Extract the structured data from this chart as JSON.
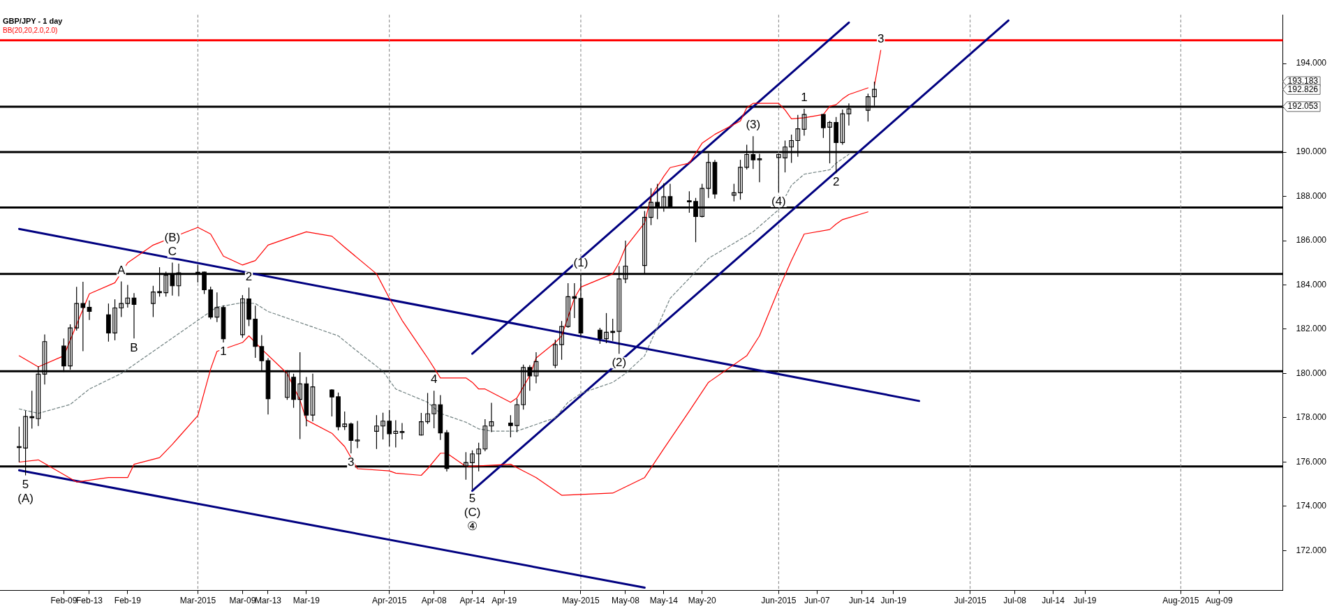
{
  "chart_data": {
    "type": "candlestick",
    "title": "GBP/JPY - 1 day",
    "color": "#000000",
    "marker": "none",
    "grid": false,
    "xlim": [
      "2015-01-30",
      "2015-08-19"
    ],
    "ylim": [
      170.2,
      196.2
    ],
    "yticks": [
      {
        "value": 172,
        "label": "172.000"
      },
      {
        "value": 174,
        "label": "174.000"
      },
      {
        "value": 176,
        "label": "176.000"
      },
      {
        "value": 178,
        "label": "178.000"
      },
      {
        "value": 180,
        "label": "180.000"
      },
      {
        "value": 182,
        "label": "182.000"
      },
      {
        "value": 184,
        "label": "184.000"
      },
      {
        "value": 186,
        "label": "186.000"
      },
      {
        "value": 188,
        "label": "188.000"
      },
      {
        "value": 190,
        "label": "190.000"
      },
      {
        "value": 192,
        "label": null
      },
      {
        "value": 194,
        "label": "194.000"
      }
    ],
    "xticks": [
      {
        "value": "2015-02-09",
        "label": "Feb-09"
      },
      {
        "value": "2015-02-13",
        "label": "Feb-13"
      },
      {
        "value": "2015-02-19",
        "label": "Feb-19"
      },
      {
        "value": "2015-03-02",
        "label": "Mar-2015"
      },
      {
        "value": "2015-03-09",
        "label": "Mar-09"
      },
      {
        "value": "2015-03-13",
        "label": "Mar-13"
      },
      {
        "value": "2015-03-19",
        "label": "Mar-19"
      },
      {
        "value": "2015-04-01",
        "label": "Apr-2015"
      },
      {
        "value": "2015-04-08",
        "label": "Apr-08"
      },
      {
        "value": "2015-04-14",
        "label": "Apr-14"
      },
      {
        "value": "2015-04-19",
        "label": "Apr-19"
      },
      {
        "value": "2015-05-01",
        "label": "May-2015"
      },
      {
        "value": "2015-05-08",
        "label": "May-08"
      },
      {
        "value": "2015-05-14",
        "label": "May-14"
      },
      {
        "value": "2015-05-20",
        "label": "May-20"
      },
      {
        "value": "2015-06-01",
        "label": "Jun-2015"
      },
      {
        "value": "2015-06-07",
        "label": "Jun-07"
      },
      {
        "value": "2015-06-14",
        "label": "Jun-14"
      },
      {
        "value": "2015-06-19",
        "label": "Jun-19"
      },
      {
        "value": "2015-07-01",
        "label": "Jul-2015"
      },
      {
        "value": "2015-07-08",
        "label": "Jul-08"
      },
      {
        "value": "2015-07-14",
        "label": "Jul-14"
      },
      {
        "value": "2015-07-19",
        "label": "Jul-19"
      },
      {
        "value": "2015-08-03",
        "label": "Aug-2015"
      },
      {
        "value": "2015-08-09",
        "label": "Aug-09"
      }
    ],
    "x": [
      "2015-02-02",
      "2015-02-03",
      "2015-02-04",
      "2015-02-05",
      "2015-02-06",
      "2015-02-09",
      "2015-02-10",
      "2015-02-11",
      "2015-02-12",
      "2015-02-13",
      "2015-02-16",
      "2015-02-17",
      "2015-02-18",
      "2015-02-19",
      "2015-02-20",
      "2015-02-23",
      "2015-02-24",
      "2015-02-25",
      "2015-02-26",
      "2015-02-27",
      "2015-03-02",
      "2015-03-03",
      "2015-03-04",
      "2015-03-05",
      "2015-03-06",
      "2015-03-09",
      "2015-03-10",
      "2015-03-11",
      "2015-03-12",
      "2015-03-13",
      "2015-03-16",
      "2015-03-17",
      "2015-03-18",
      "2015-03-19",
      "2015-03-20",
      "2015-03-23",
      "2015-03-24",
      "2015-03-25",
      "2015-03-26",
      "2015-03-27",
      "2015-03-30",
      "2015-03-31",
      "2015-04-01",
      "2015-04-02",
      "2015-04-03",
      "2015-04-06",
      "2015-04-07",
      "2015-04-08",
      "2015-04-09",
      "2015-04-10",
      "2015-04-13",
      "2015-04-14",
      "2015-04-15",
      "2015-04-16",
      "2015-04-17",
      "2015-04-20",
      "2015-04-21",
      "2015-04-22",
      "2015-04-23",
      "2015-04-24",
      "2015-04-27",
      "2015-04-28",
      "2015-04-29",
      "2015-04-30",
      "2015-05-01",
      "2015-05-04",
      "2015-05-05",
      "2015-05-06",
      "2015-05-07",
      "2015-05-08",
      "2015-05-11",
      "2015-05-12",
      "2015-05-13",
      "2015-05-14",
      "2015-05-15",
      "2015-05-18",
      "2015-05-19",
      "2015-05-20",
      "2015-05-21",
      "2015-05-22",
      "2015-05-25",
      "2015-05-26",
      "2015-05-27",
      "2015-05-28",
      "2015-05-29",
      "2015-06-01",
      "2015-06-02",
      "2015-06-03",
      "2015-06-04",
      "2015-06-05",
      "2015-06-08",
      "2015-06-09",
      "2015-06-10",
      "2015-06-11",
      "2015-06-12",
      "2015-06-15",
      "2015-06-16"
    ],
    "ohlc": [
      [
        176.7,
        177.6,
        176.0,
        176.66
      ],
      [
        176.63,
        178.32,
        175.4,
        178.06
      ],
      [
        178.05,
        179.22,
        177.51,
        178.0
      ],
      [
        177.96,
        180.32,
        177.63,
        179.97
      ],
      [
        179.97,
        181.76,
        179.5,
        181.44
      ],
      [
        181.24,
        181.58,
        180.07,
        180.34
      ],
      [
        180.34,
        182.22,
        180.17,
        182.06
      ],
      [
        182.06,
        183.91,
        181.94,
        183.16
      ],
      [
        183.16,
        184.14,
        181.01,
        182.98
      ],
      [
        182.99,
        183.3,
        182.42,
        182.81
      ],
      [
        182.65,
        183.16,
        181.44,
        181.83
      ],
      [
        181.83,
        183.35,
        181.5,
        182.96
      ],
      [
        182.96,
        184.16,
        182.55,
        183.16
      ],
      [
        183.16,
        184.0,
        182.98,
        183.41
      ],
      [
        183.41,
        183.63,
        181.58,
        183.12
      ],
      [
        183.16,
        183.96,
        182.55,
        183.68
      ],
      [
        183.7,
        184.8,
        183.47,
        183.66
      ],
      [
        183.65,
        184.6,
        183.47,
        184.44
      ],
      [
        184.44,
        185.01,
        183.52,
        183.96
      ],
      [
        183.96,
        184.96,
        183.49,
        184.55
      ],
      [
        184.57,
        184.9,
        184.11,
        184.55
      ],
      [
        184.58,
        184.6,
        183.59,
        183.78
      ],
      [
        183.78,
        183.92,
        182.45,
        182.55
      ],
      [
        182.55,
        183.66,
        182.32,
        182.98
      ],
      [
        182.98,
        183.08,
        181.4,
        181.57
      ],
      [
        181.75,
        183.54,
        181.61,
        183.37
      ],
      [
        183.37,
        183.88,
        182.14,
        182.45
      ],
      [
        182.45,
        183.06,
        180.71,
        181.22
      ],
      [
        181.22,
        181.73,
        180.11,
        180.58
      ],
      [
        180.58,
        180.69,
        178.15,
        178.86
      ],
      [
        178.92,
        180.15,
        178.81,
        180.11
      ],
      [
        179.83,
        179.99,
        178.45,
        178.83
      ],
      [
        178.83,
        180.96,
        177.04,
        179.53
      ],
      [
        179.53,
        179.84,
        177.61,
        178.12
      ],
      [
        178.12,
        179.99,
        177.84,
        179.4
      ],
      [
        179.26,
        179.29,
        178.06,
        178.94
      ],
      [
        178.95,
        179.14,
        177.43,
        177.59
      ],
      [
        177.6,
        178.28,
        177.45,
        177.72
      ],
      [
        177.72,
        177.79,
        176.39,
        176.98
      ],
      [
        176.98,
        177.86,
        176.63,
        177.0
      ],
      [
        177.39,
        178.12,
        176.59,
        177.63
      ],
      [
        177.63,
        178.23,
        177.02,
        177.85
      ],
      [
        177.85,
        178.35,
        176.71,
        177.28
      ],
      [
        177.29,
        177.89,
        176.66,
        177.39
      ],
      [
        177.36,
        177.76,
        177.02,
        177.38
      ],
      [
        177.22,
        178.22,
        177.2,
        177.82
      ],
      [
        177.82,
        179.12,
        177.72,
        178.18
      ],
      [
        178.18,
        179.22,
        177.53,
        178.59
      ],
      [
        178.59,
        179.02,
        177.0,
        177.32
      ],
      [
        177.33,
        177.45,
        175.57,
        175.71
      ],
      [
        175.81,
        176.45,
        175.2,
        175.98
      ],
      [
        175.97,
        176.53,
        174.77,
        176.37
      ],
      [
        176.37,
        176.87,
        175.58,
        176.59
      ],
      [
        176.59,
        177.94,
        176.49,
        177.63
      ],
      [
        177.63,
        178.68,
        177.35,
        177.82
      ],
      [
        177.76,
        178.12,
        177.12,
        177.65
      ],
      [
        177.65,
        178.86,
        177.35,
        178.59
      ],
      [
        178.59,
        180.4,
        178.37,
        180.27
      ],
      [
        180.27,
        180.38,
        179.22,
        179.89
      ],
      [
        179.89,
        180.96,
        179.56,
        180.54
      ],
      [
        180.37,
        181.53,
        180.24,
        181.3
      ],
      [
        181.3,
        182.37,
        180.62,
        182.12
      ],
      [
        182.12,
        184.08,
        182.06,
        183.47
      ],
      [
        183.47,
        184.08,
        182.5,
        183.4
      ],
      [
        183.39,
        184.5,
        181.68,
        181.83
      ],
      [
        181.96,
        182.06,
        181.34,
        181.58
      ],
      [
        181.57,
        182.73,
        181.37,
        181.86
      ],
      [
        181.9,
        182.47,
        181.47,
        181.88
      ],
      [
        181.9,
        184.85,
        180.89,
        184.27
      ],
      [
        184.27,
        186.0,
        184.08,
        184.85
      ],
      [
        184.88,
        187.34,
        184.52,
        187.05
      ],
      [
        187.05,
        188.37,
        186.7,
        187.73
      ],
      [
        187.73,
        188.57,
        186.97,
        187.52
      ],
      [
        187.52,
        188.59,
        187.31,
        187.98
      ],
      [
        187.99,
        188.57,
        187.45,
        187.5
      ],
      [
        187.8,
        188.23,
        187.26,
        187.77
      ],
      [
        187.77,
        187.93,
        185.93,
        187.09
      ],
      [
        187.09,
        188.57,
        187.05,
        188.36
      ],
      [
        188.36,
        189.94,
        187.93,
        189.53
      ],
      [
        189.53,
        189.65,
        187.9,
        188.11
      ],
      [
        188.05,
        188.57,
        187.77,
        188.16
      ],
      [
        188.16,
        189.65,
        187.85,
        189.31
      ],
      [
        189.31,
        190.33,
        189.21,
        189.89
      ],
      [
        189.89,
        190.72,
        189.24,
        189.65
      ],
      [
        189.65,
        189.92,
        188.64,
        189.7
      ],
      [
        189.75,
        189.92,
        188.18,
        189.89
      ],
      [
        189.74,
        190.52,
        189.08,
        190.23
      ],
      [
        190.23,
        190.79,
        189.51,
        190.52
      ],
      [
        190.52,
        191.68,
        189.79,
        191.05
      ],
      [
        191.03,
        191.95,
        190.74,
        191.7
      ],
      [
        191.7,
        191.72,
        190.64,
        191.1
      ],
      [
        191.12,
        191.41,
        189.49,
        191.34
      ],
      [
        191.34,
        191.58,
        189.05,
        190.43
      ],
      [
        190.43,
        191.92,
        190.33,
        191.73
      ],
      [
        191.73,
        192.2,
        191.2,
        191.95
      ],
      [
        191.89,
        192.64,
        191.38,
        192.5
      ],
      [
        192.5,
        193.18,
        192.09,
        192.83
      ]
    ],
    "series": [
      {
        "type": "line",
        "color": "#ff0000",
        "x": [
          "2015-02-02",
          "2015-02-05",
          "2015-02-09",
          "2015-02-10",
          "2015-02-11",
          "2015-02-13",
          "2015-02-17",
          "2015-02-19",
          "2015-02-23",
          "2015-02-25",
          "2015-03-02",
          "2015-03-04",
          "2015-03-06",
          "2015-03-09",
          "2015-03-11",
          "2015-03-13",
          "2015-03-17",
          "2015-03-19",
          "2015-03-23",
          "2015-03-25",
          "2015-03-30",
          "2015-04-01",
          "2015-04-03",
          "2015-04-07",
          "2015-04-09",
          "2015-04-13",
          "2015-04-14",
          "2015-04-15",
          "2015-04-16",
          "2015-04-20",
          "2015-04-21",
          "2015-04-22",
          "2015-04-23",
          "2015-04-24",
          "2015-04-27",
          "2015-04-28",
          "2015-04-29",
          "2015-04-30",
          "2015-05-01",
          "2015-05-06",
          "2015-05-07",
          "2015-05-08",
          "2015-05-11",
          "2015-05-12",
          "2015-05-14",
          "2015-05-15",
          "2015-05-18",
          "2015-05-20",
          "2015-05-22",
          "2015-05-26",
          "2015-05-27",
          "2015-05-28",
          "2015-06-01",
          "2015-06-02",
          "2015-06-03",
          "2015-06-05",
          "2015-06-08",
          "2015-06-09",
          "2015-06-10",
          "2015-06-11",
          "2015-06-12",
          "2015-06-15"
        ],
        "values": [
          180.8,
          180.3,
          180.8,
          null,
          null,
          183.6,
          184.1,
          185.0,
          185.8,
          null,
          186.6,
          186.3,
          185.3,
          184.9,
          185.1,
          185.8,
          186.2,
          186.4,
          186.2,
          185.7,
          184.5,
          183.4,
          182.4,
          180.7,
          179.8,
          179.8,
          179.6,
          179.3,
          179.3,
          178.7,
          178.9,
          null,
          179.9,
          180.7,
          181.4,
          181.7,
          null,
          183.4,
          183.9,
          184.5,
          185.0,
          185.7,
          186.8,
          188.0,
          188.9,
          189.3,
          189.5,
          190.4,
          190.8,
          191.4,
          192.0,
          192.2,
          192.2,
          191.9,
          191.5,
          191.55,
          191.7,
          192.07,
          192.14,
          192.4,
          192.6,
          192.9
        ]
      },
      {
        "type": "line",
        "color": "#708080",
        "line_style": "dashed",
        "x": [
          "2015-02-02",
          "2015-02-05",
          "2015-02-10",
          "2015-02-13",
          "2015-02-18",
          "2015-02-23",
          "2015-02-26",
          "2015-03-02",
          "2015-03-05",
          "2015-03-09",
          "2015-03-11",
          "2015-03-13",
          "2015-03-18",
          "2015-03-24",
          "2015-03-27",
          "2015-03-31",
          "2015-04-02",
          "2015-04-07",
          "2015-04-09",
          "2015-04-13",
          "2015-04-15",
          "2015-04-17",
          "2015-04-21",
          "2015-04-23",
          "2015-04-27",
          "2015-04-29",
          "2015-05-01",
          "2015-05-06",
          "2015-05-08",
          "2015-05-11",
          "2015-05-13",
          "2015-05-15",
          "2015-05-21",
          "2015-05-28",
          "2015-06-01",
          "2015-06-03",
          "2015-06-05",
          "2015-06-09",
          "2015-06-10",
          "2015-06-12"
        ],
        "values": [
          178.4,
          178.2,
          178.6,
          179.3,
          180.0,
          181.0,
          181.6,
          182.4,
          183.0,
          183.2,
          183.16,
          182.8,
          182.3,
          181.7,
          181.0,
          180.1,
          179.3,
          178.7,
          178.2,
          177.8,
          177.5,
          177.4,
          177.4,
          177.6,
          178.0,
          178.7,
          179.1,
          179.6,
          180.0,
          180.8,
          182.1,
          183.4,
          185.2,
          186.4,
          187.4,
          188.5,
          189.0,
          189.2,
          189.5,
          189.9
        ]
      },
      {
        "type": "line",
        "color": "#ff0000",
        "x": [
          "2015-02-02",
          "2015-02-05",
          "2015-02-11",
          "2015-02-16",
          "2015-02-19",
          "2015-02-20",
          "2015-02-24",
          "2015-02-26",
          "2015-03-02",
          "2015-03-04",
          "2015-03-05",
          "2015-03-09",
          "2015-03-10",
          "2015-03-12",
          "2015-03-16",
          "2015-03-18",
          "2015-03-19",
          "2015-03-23",
          "2015-03-25",
          "2015-03-27",
          "2015-04-01",
          "2015-04-02",
          "2015-04-06",
          "2015-04-07",
          "2015-04-09",
          "2015-04-10",
          "2015-04-13",
          "2015-04-20",
          "2015-04-22",
          "2015-04-24",
          "2015-04-28",
          "2015-05-06",
          "2015-05-11",
          "2015-05-14",
          "2015-05-18",
          "2015-05-21",
          "2015-05-27",
          "2015-05-29",
          "2015-06-01",
          "2015-06-03",
          "2015-06-05",
          "2015-06-09",
          "2015-06-10",
          "2015-06-11",
          "2015-06-15"
        ],
        "values": [
          176.0,
          176.1,
          175.1,
          175.3,
          175.3,
          175.9,
          176.2,
          176.8,
          178.1,
          180.2,
          181.0,
          181.4,
          181.7,
          181.1,
          180.0,
          178.8,
          177.9,
          177.3,
          176.7,
          175.7,
          175.6,
          175.5,
          175.4,
          175.7,
          176.4,
          176.4,
          175.8,
          175.9,
          175.6,
          175.3,
          174.5,
          174.6,
          175.3,
          176.6,
          178.3,
          179.6,
          180.8,
          181.7,
          183.8,
          185.1,
          186.3,
          186.5,
          186.75,
          186.95,
          187.3
        ]
      },
      {
        "type": "line",
        "color": "#000080",
        "x": [
          "2015-02-02",
          "2015-06-23"
        ],
        "values": [
          186.53,
          178.76
        ]
      },
      {
        "type": "line",
        "color": "#000080",
        "x": [
          "2015-02-02",
          "2015-05-11"
        ],
        "values": [
          175.63,
          170.33
        ]
      },
      {
        "type": "line",
        "color": "#000080",
        "x": [
          "2015-04-14",
          "2015-06-12"
        ],
        "values": [
          180.89,
          195.85
        ]
      },
      {
        "type": "line",
        "color": "#000080",
        "x": [
          "2015-04-14",
          "2015-07-07"
        ],
        "values": [
          174.7,
          195.94
        ]
      },
      {
        "type": "line",
        "color": "#ff0000",
        "x": [
          "2015-06-16",
          "2015-06-17"
        ],
        "values": [
          193.0,
          194.6
        ]
      }
    ],
    "ref_lines": [
      {
        "axis": "y",
        "value": 195.05,
        "color": "#ff0000"
      },
      {
        "axis": "y",
        "value": 192.05,
        "color": "#000000"
      },
      {
        "axis": "y",
        "value": 190.0,
        "color": "#000000"
      },
      {
        "axis": "y",
        "value": 187.5,
        "color": "#000000"
      },
      {
        "axis": "y",
        "value": 184.5,
        "color": "#000000"
      },
      {
        "axis": "y",
        "value": 180.1,
        "color": "#000000"
      },
      {
        "axis": "y",
        "value": 175.8,
        "color": "#000000"
      },
      {
        "axis": "x",
        "value": "2015-03-02",
        "color": "#808080",
        "line_style": "dashed"
      },
      {
        "axis": "x",
        "value": "2015-04-01",
        "color": "#808080",
        "line_style": "dashed"
      },
      {
        "axis": "x",
        "value": "2015-05-01",
        "color": "#808080",
        "line_style": "dashed"
      },
      {
        "axis": "x",
        "value": "2015-06-01",
        "color": "#808080",
        "line_style": "dashed"
      },
      {
        "axis": "x",
        "value": "2015-07-01",
        "color": "#808080",
        "line_style": "dashed"
      },
      {
        "axis": "x",
        "value": "2015-08-03",
        "color": "#808080",
        "line_style": "dashed"
      }
    ],
    "annotations": [
      "BB(20,20,2.0,2.0)",
      "193.183",
      "192.826",
      "192.053",
      {
        "text": "5",
        "x": "2015-02-03",
        "y": 175.4
      },
      {
        "text": "(A)",
        "x": "2015-02-03",
        "y": 175.4
      },
      {
        "text": "A",
        "x": "2015-02-18",
        "y": 184.16
      },
      {
        "text": "B",
        "x": "2015-02-20",
        "y": 181.58
      },
      {
        "text": "C",
        "x": "2015-02-26",
        "y": 185.01
      },
      {
        "text": "(B)",
        "x": "2015-02-26",
        "y": 185.01
      },
      {
        "text": "1",
        "x": "2015-03-06",
        "y": 181.4
      },
      {
        "text": "2",
        "x": "2015-03-10",
        "y": 183.88
      },
      {
        "text": "3",
        "x": "2015-03-26",
        "y": 176.39
      },
      {
        "text": "4",
        "x": "2015-04-08",
        "y": 179.22
      },
      {
        "text": "5",
        "x": "2015-04-14",
        "y": 174.77
      },
      {
        "text": "(C)",
        "x": "2015-04-14",
        "y": 174.77
      },
      {
        "text": "④",
        "x": "2015-04-14",
        "y": 174.77
      },
      {
        "text": "(1)",
        "x": "2015-05-01",
        "y": 184.5
      },
      {
        "text": "(2)",
        "x": "2015-05-07",
        "y": 180.89
      },
      {
        "text": "(3)",
        "x": "2015-05-28",
        "y": 190.72
      },
      {
        "text": "(4)",
        "x": "2015-06-01",
        "y": 188.18
      },
      {
        "text": "1",
        "x": "2015-06-05",
        "y": 191.95
      },
      {
        "text": "2",
        "x": "2015-06-10",
        "y": 189.05
      },
      {
        "text": "3",
        "x": "2015-06-17",
        "y": 194.6
      }
    ]
  }
}
